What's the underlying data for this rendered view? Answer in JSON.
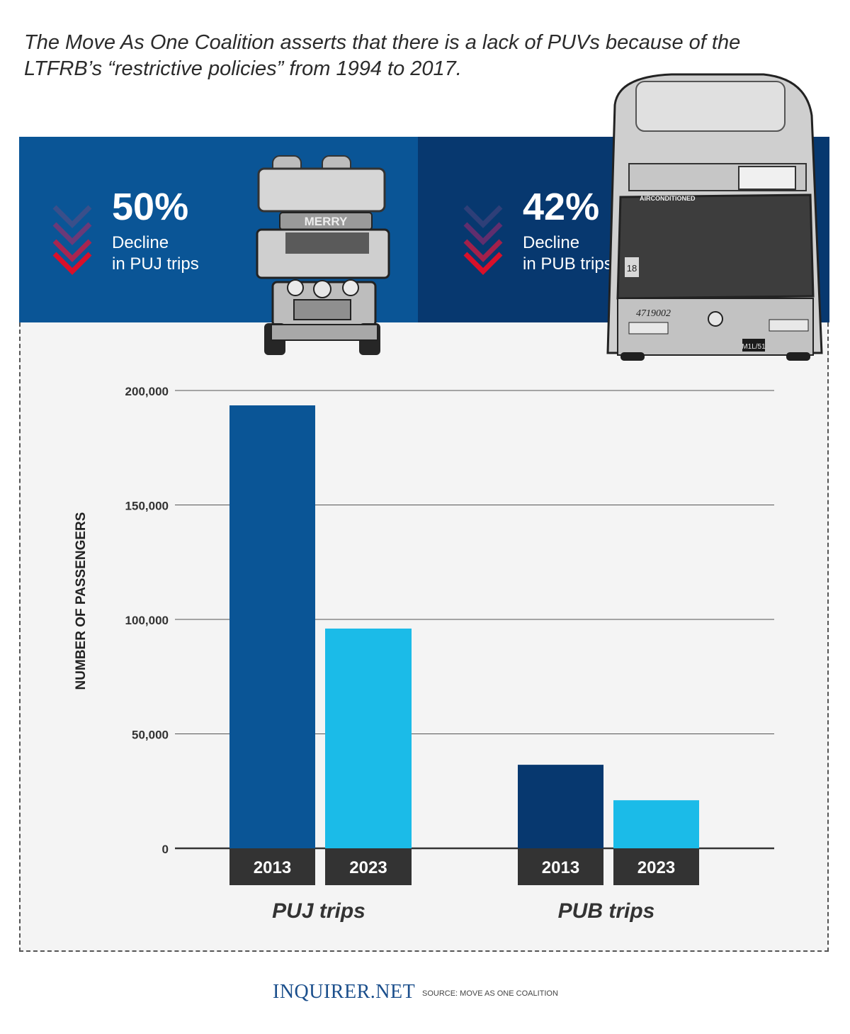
{
  "intro_text": "The Move As One Coalition asserts that there is a lack of PUVs because of the LTFRB’s “restrictive policies” from 1994 to 2017.",
  "stats": [
    {
      "value": "50%",
      "line1": "Decline",
      "line2": "in PUJ trips",
      "vehicle": "jeepney-photo"
    },
    {
      "value": "42%",
      "line1": "Decline",
      "line2": "in PUB trips",
      "vehicle": "bus-photo"
    }
  ],
  "vehicle_text": {
    "jeepney_sign": "MERRY",
    "bus_sign": "AIRCONDITIONED",
    "bus_number": "4719002",
    "bus_side_number": "18",
    "bus_plate": "M1L/51"
  },
  "colors": {
    "panel_left": "#0a5596",
    "panel_right": "#07386f",
    "chevron_red": "#d8102a",
    "bar_puj_2013": "#0a5596",
    "bar_pub_2013": "#07386f",
    "bar_2023": "#1bbbe8",
    "label_box": "#333333"
  },
  "chart_data": {
    "type": "bar",
    "ylabel": "NUMBER OF PASSENGERS",
    "ylim": [
      0,
      200000
    ],
    "yticks": [
      0,
      50000,
      100000,
      150000,
      200000
    ],
    "ytick_labels": [
      "0",
      "50,000",
      "100,000",
      "150,000",
      "200,000"
    ],
    "grid": true,
    "groups": [
      {
        "name": "PUJ trips",
        "bars": [
          {
            "label": "2013",
            "value": 193500
          },
          {
            "label": "2023",
            "value": 96000
          }
        ]
      },
      {
        "name": "PUB trips",
        "bars": [
          {
            "label": "2013",
            "value": 36500
          },
          {
            "label": "2023",
            "value": 21000
          }
        ]
      }
    ]
  },
  "footer": {
    "logo": "INQUIRER.NET",
    "source": "SOURCE: MOVE AS ONE COALITION"
  }
}
